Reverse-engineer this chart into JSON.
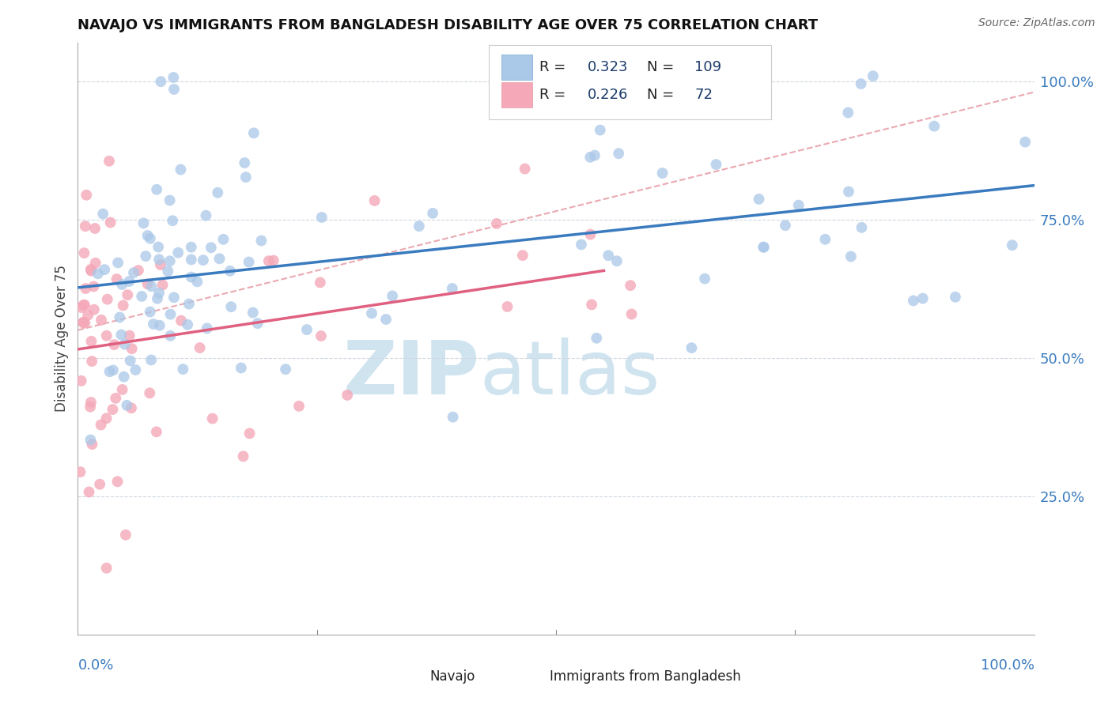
{
  "title": "NAVAJO VS IMMIGRANTS FROM BANGLADESH DISABILITY AGE OVER 75 CORRELATION CHART",
  "source": "Source: ZipAtlas.com",
  "ylabel": "Disability Age Over 75",
  "navajo_R": 0.323,
  "navajo_N": 109,
  "bangladesh_R": 0.226,
  "bangladesh_N": 72,
  "navajo_color": "#aac8e8",
  "bangladesh_color": "#f4a8b8",
  "navajo_line_color": "#3a7bbf",
  "bangladesh_line_color": "#e06080",
  "dashed_line_color": "#e8a0a8",
  "grid_color": "#d0d8e0",
  "background_color": "#ffffff",
  "navajo_scatter_seed": 42,
  "bangladesh_scatter_seed": 99,
  "legend_text_color": "#1a3a6a",
  "title_color": "#111111",
  "axis_label_color": "#3a7bbf",
  "ylabel_color": "#444444",
  "watermark_color": "#d0e4f0"
}
